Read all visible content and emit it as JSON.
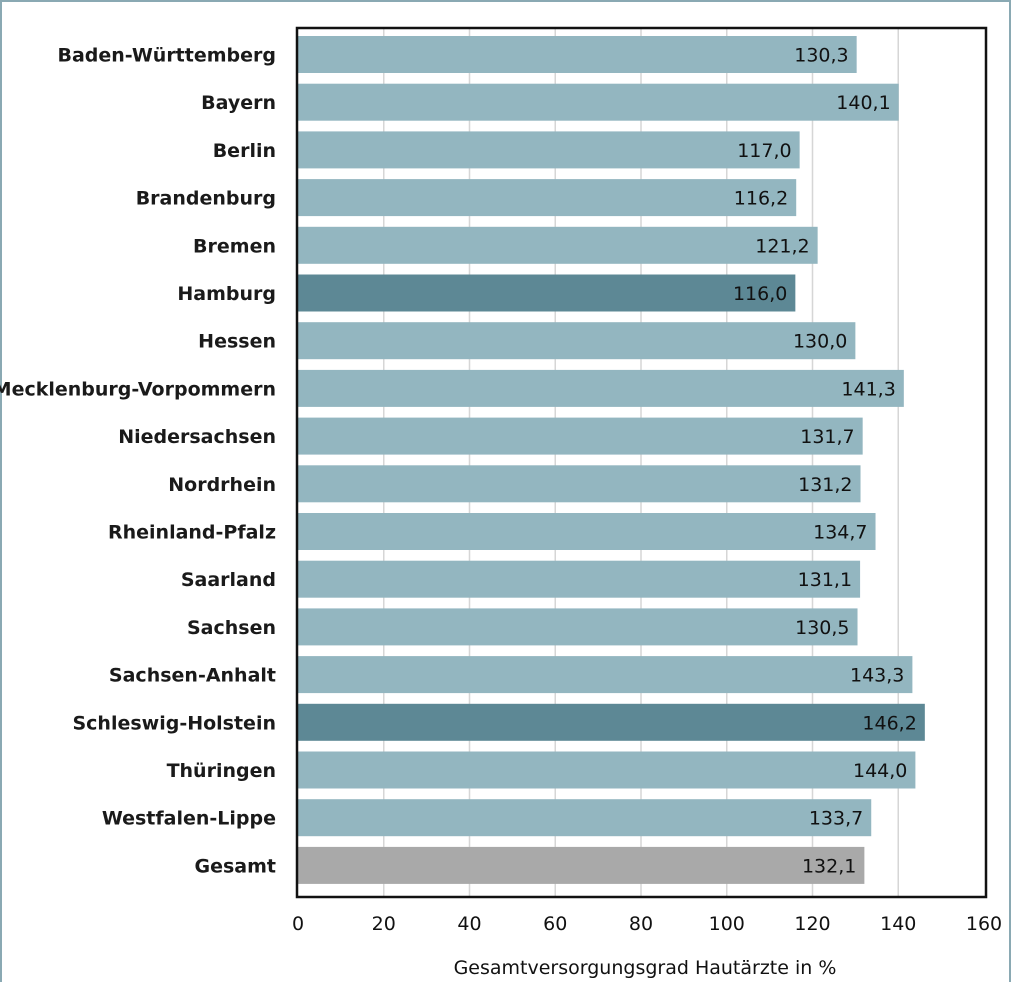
{
  "chart_data": {
    "type": "bar",
    "orientation": "horizontal",
    "categories": [
      "Baden-Württemberg",
      "Bayern",
      "Berlin",
      "Brandenburg",
      "Bremen",
      "Hamburg",
      "Hessen",
      "Mecklenburg-Vorpommern",
      "Niedersachsen",
      "Nordrhein",
      "Rheinland-Pfalz",
      "Saarland",
      "Sachsen",
      "Sachsen-Anhalt",
      "Schleswig-Holstein",
      "Thüringen",
      "Westfalen-Lippe",
      "Gesamt"
    ],
    "values": [
      130.3,
      140.1,
      117.0,
      116.2,
      121.2,
      116.0,
      130.0,
      141.3,
      131.7,
      131.2,
      134.7,
      131.1,
      130.5,
      143.3,
      146.2,
      144.0,
      133.7,
      132.1
    ],
    "value_labels": [
      "130,3",
      "140,1",
      "117,0",
      "116,2",
      "121,2",
      "116,0",
      "130,0",
      "141,3",
      "131,7",
      "131,2",
      "134,7",
      "131,1",
      "130,5",
      "143,3",
      "146,2",
      "144,0",
      "133,7",
      "132,1"
    ],
    "bar_colors": [
      "#93b6c0",
      "#93b6c0",
      "#93b6c0",
      "#93b6c0",
      "#93b6c0",
      "#5d8895",
      "#93b6c0",
      "#93b6c0",
      "#93b6c0",
      "#93b6c0",
      "#93b6c0",
      "#93b6c0",
      "#93b6c0",
      "#93b6c0",
      "#5d8895",
      "#93b6c0",
      "#93b6c0",
      "#a9a9a9"
    ],
    "xlim": [
      0,
      160
    ],
    "xticks": [
      0,
      20,
      40,
      60,
      80,
      100,
      120,
      140,
      160
    ],
    "xlabel": "Gesamtversorgungsgrad Hautärzte in %",
    "grid": true
  }
}
